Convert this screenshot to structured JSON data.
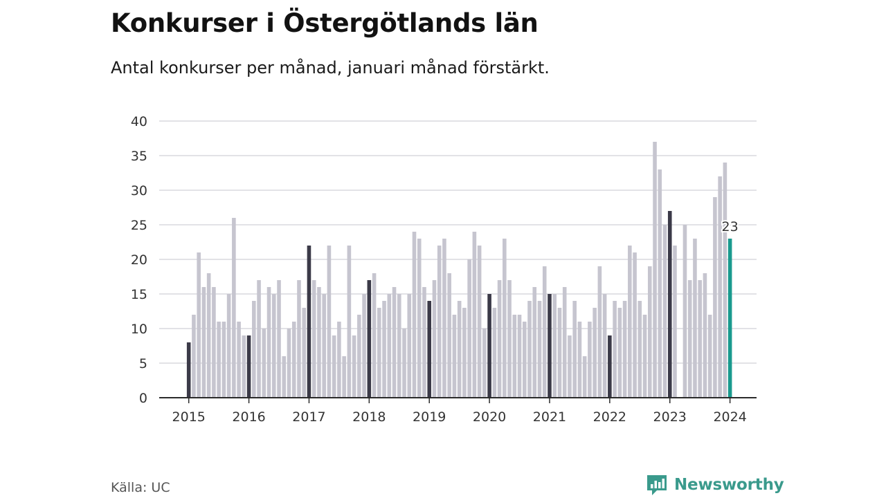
{
  "header": {
    "title": "Konkurser i Östergötlands län",
    "subtitle": "Antal konkurser per månad, januari månad förstärkt."
  },
  "footer": {
    "source": "Källa: UC",
    "brand": "Newsworthy",
    "brand_icon": "newsworthy-logo-icon"
  },
  "colors": {
    "bar": "#c6c5cf",
    "january_bar": "#3b3a48",
    "latest_bar": "#1a9a8e",
    "grid": "#d8d8de",
    "axis": "#2a2a2a",
    "brand": "#3a9a8c"
  },
  "chart_data": {
    "type": "bar",
    "x_labels": [
      "2015",
      "2016",
      "2017",
      "2018",
      "2019",
      "2020",
      "2021",
      "2022",
      "2023",
      "2024"
    ],
    "start_year": 2015,
    "values": [
      8,
      12,
      21,
      16,
      18,
      16,
      11,
      11,
      15,
      26,
      11,
      9,
      9,
      14,
      17,
      10,
      16,
      15,
      17,
      6,
      10,
      11,
      17,
      13,
      22,
      17,
      16,
      15,
      22,
      9,
      11,
      6,
      22,
      9,
      12,
      15,
      17,
      18,
      13,
      14,
      15,
      16,
      15,
      10,
      15,
      24,
      23,
      16,
      14,
      17,
      22,
      23,
      18,
      12,
      14,
      13,
      20,
      24,
      22,
      10,
      15,
      13,
      17,
      23,
      17,
      12,
      12,
      11,
      14,
      16,
      14,
      19,
      15,
      15,
      13,
      16,
      9,
      14,
      11,
      6,
      11,
      13,
      19,
      15,
      9,
      14,
      13,
      14,
      22,
      21,
      14,
      12,
      19,
      37,
      33,
      25,
      27,
      22,
      0,
      25,
      17,
      23,
      17,
      18,
      12,
      29,
      32,
      34,
      23
    ],
    "highlight": "january",
    "latest_label": "23",
    "yticks": [
      0,
      5,
      10,
      15,
      20,
      25,
      30,
      35,
      40
    ],
    "ylim": [
      0,
      40
    ],
    "grid": true,
    "xlabel": "",
    "ylabel": ""
  }
}
